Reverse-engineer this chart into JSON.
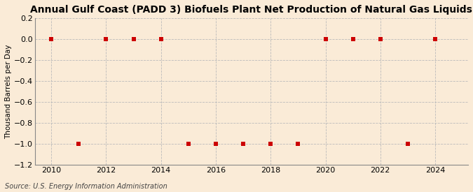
{
  "title": "Annual Gulf Coast (PADD 3) Biofuels Plant Net Production of Natural Gas Liquids",
  "ylabel": "Thousand Barrels per Day",
  "source": "Source: U.S. Energy Information Administration",
  "background_color": "#faebd7",
  "plot_bg_color": "#faebd7",
  "years": [
    2010,
    2011,
    2012,
    2013,
    2014,
    2015,
    2016,
    2017,
    2018,
    2019,
    2020,
    2021,
    2022,
    2023,
    2024
  ],
  "values": [
    0.0,
    -1.0,
    0.0,
    0.0,
    0.0,
    -1.0,
    -1.0,
    -1.0,
    -1.0,
    -1.0,
    0.0,
    0.0,
    0.0,
    -1.0,
    0.0
  ],
  "ylim": [
    -1.2,
    0.2
  ],
  "yticks": [
    0.2,
    0.0,
    -0.2,
    -0.4,
    -0.6,
    -0.8,
    -1.0,
    -1.2
  ],
  "xlim": [
    2009.4,
    2025.2
  ],
  "xticks": [
    2010,
    2012,
    2014,
    2016,
    2018,
    2020,
    2022,
    2024
  ],
  "marker_color": "#cc0000",
  "marker_size": 4,
  "grid_color": "#bbbbbb",
  "grid_linestyle": "--",
  "title_fontsize": 10,
  "label_fontsize": 7.5,
  "tick_fontsize": 8,
  "source_fontsize": 7,
  "spine_color": "#888888"
}
